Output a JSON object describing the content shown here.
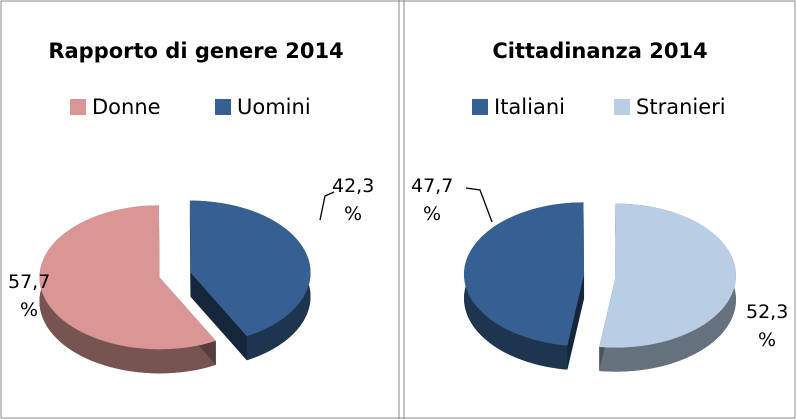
{
  "chart_data": [
    {
      "type": "pie",
      "title": "Rapporto di genere 2014",
      "categories": [
        "Donne",
        "Uomini"
      ],
      "values": [
        57.7,
        42.3
      ],
      "value_labels": [
        "57,7 %",
        "42,3 %"
      ],
      "colors": [
        "#d99694",
        "#376092"
      ],
      "legend": "top"
    },
    {
      "type": "pie",
      "title": "Cittadinanza 2014",
      "categories": [
        "Italiani",
        "Stranieri"
      ],
      "values": [
        47.7,
        52.3
      ],
      "value_labels": [
        "47,7 %",
        "52,3 %"
      ],
      "colors": [
        "#376092",
        "#b9cde5"
      ],
      "legend": "top"
    }
  ]
}
